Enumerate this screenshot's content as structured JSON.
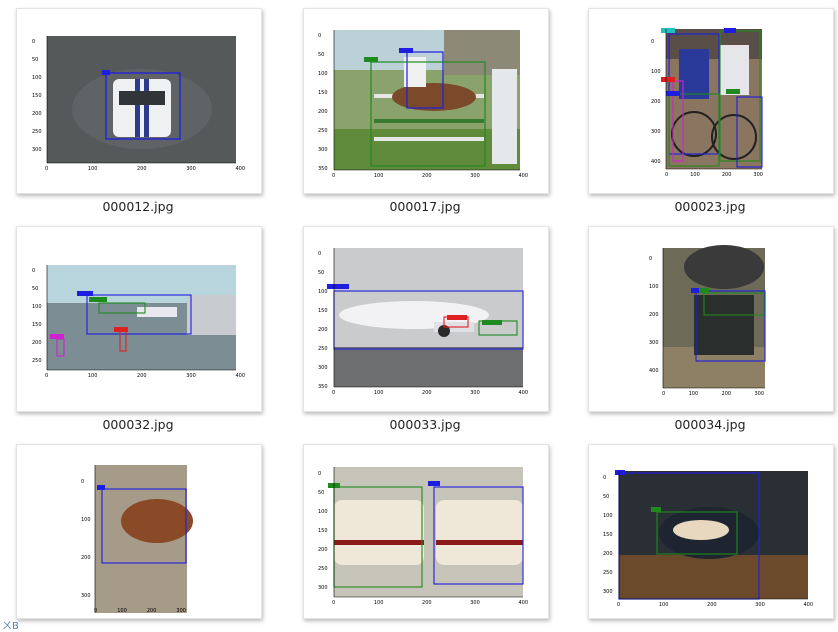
{
  "files": [
    {
      "name": "000012.jpg",
      "yticks": [
        "0",
        "50",
        "100",
        "150",
        "200",
        "250",
        "300"
      ],
      "xticks": [
        "0",
        "100",
        "200",
        "300",
        "400"
      ],
      "labels": [
        "car"
      ]
    },
    {
      "name": "000017.jpg",
      "yticks": [
        "0",
        "50",
        "100",
        "150",
        "200",
        "250",
        "300",
        "350"
      ],
      "xticks": [
        "0",
        "100",
        "200",
        "300",
        "400"
      ],
      "labels": [
        "person",
        "horse"
      ]
    },
    {
      "name": "000023.jpg",
      "yticks": [
        "0",
        "100",
        "200",
        "300",
        "400"
      ],
      "xticks": [
        "0",
        "100",
        "200",
        "300"
      ],
      "labels": [
        "person",
        "person",
        "bicycle",
        "bicycle",
        "person"
      ]
    },
    {
      "name": "000032.jpg",
      "yticks": [
        "0",
        "50",
        "100",
        "150",
        "200",
        "250"
      ],
      "xticks": [
        "0",
        "100",
        "200",
        "300",
        "400"
      ],
      "labels": [
        "aeroplane",
        "aeroplane",
        "person",
        "person"
      ]
    },
    {
      "name": "000033.jpg",
      "yticks": [
        "0",
        "50",
        "100",
        "150",
        "200",
        "250",
        "300",
        "350"
      ],
      "xticks": [
        "0",
        "100",
        "200",
        "300",
        "400"
      ],
      "labels": [
        "aeroplane",
        "aeroplane",
        "aeroplane"
      ]
    },
    {
      "name": "000034.jpg",
      "yticks": [
        "0",
        "100",
        "200",
        "300",
        "400"
      ],
      "xticks": [
        "0",
        "100",
        "200",
        "300"
      ],
      "labels": [
        "train",
        "train"
      ]
    },
    {
      "name": "",
      "yticks": [
        "0",
        "100",
        "200",
        "300"
      ],
      "xticks": [
        "0",
        "100",
        "200",
        "300"
      ],
      "labels": [
        "dog"
      ]
    },
    {
      "name": "",
      "yticks": [
        "0",
        "50",
        "100",
        "150",
        "200",
        "250",
        "300"
      ],
      "xticks": [
        "0",
        "100",
        "200",
        "300",
        "400"
      ],
      "labels": [
        "train",
        "train"
      ]
    },
    {
      "name": "",
      "yticks": [
        "0",
        "50",
        "100",
        "150",
        "200",
        "250",
        "300"
      ],
      "xticks": [
        "0",
        "100",
        "200",
        "300",
        "400"
      ],
      "labels": [
        "bird",
        "cat"
      ]
    }
  ],
  "partial_text": "ㄨB",
  "colors": {
    "blue": "#1e1ee0",
    "green": "#1f8a1f",
    "red": "#e02020",
    "magenta": "#d020d0",
    "cyan": "#20c0c0"
  }
}
